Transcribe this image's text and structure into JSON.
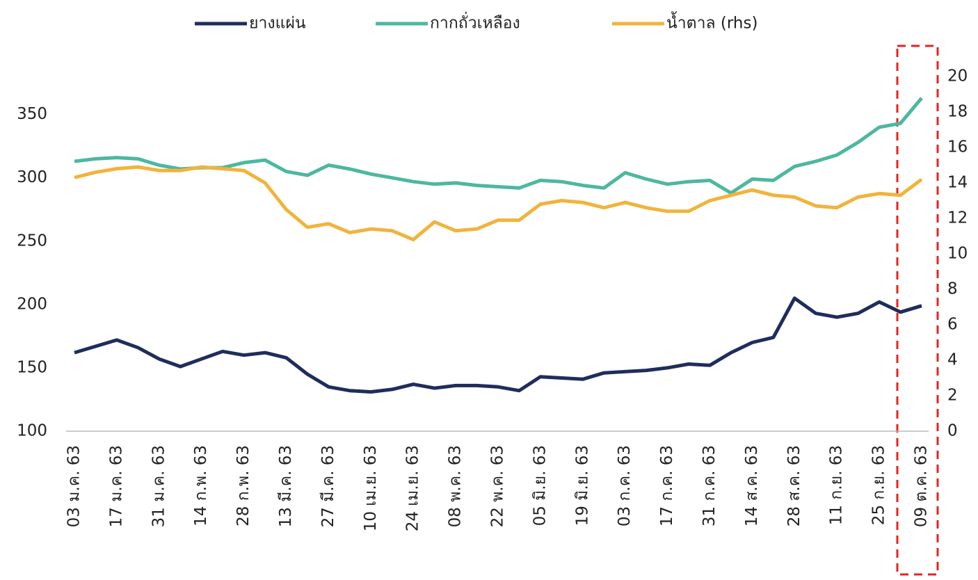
{
  "chart_data": {
    "type": "line",
    "categories": [
      "03 ม.ค. 63",
      null,
      "17 ม.ค. 63",
      null,
      "31 ม.ค. 63",
      null,
      "14 ก.พ. 63",
      null,
      "28 ก.พ. 63",
      null,
      "13 มี.ค. 63",
      null,
      "27 มี.ค. 63",
      null,
      "10 เม.ย. 63",
      null,
      "24 เม.ย. 63",
      null,
      "08 พ.ค. 63",
      null,
      "22 พ.ค. 63",
      null,
      "05 มิ.ย. 63",
      null,
      "19 มิ.ย. 63",
      null,
      "03 ก.ค. 63",
      null,
      "17 ก.ค. 63",
      null,
      "31 ก.ค. 63",
      null,
      "14 ส.ค. 63",
      null,
      "28 ส.ค. 63",
      null,
      "11 ก.ย. 63",
      null,
      "25 ก.ย. 63",
      null,
      "09 ต.ค. 63"
    ],
    "series": [
      {
        "name": "ยางแผ่น",
        "color": "#1f2d5c",
        "values": [
          162,
          167,
          172,
          166,
          157,
          151,
          157,
          163,
          160,
          162,
          158,
          145,
          135,
          132,
          131,
          133,
          137,
          134,
          136,
          136,
          135,
          132,
          143,
          142,
          141,
          146,
          147,
          148,
          150,
          153,
          152,
          162,
          170,
          174,
          205,
          193,
          190,
          193,
          202,
          194,
          199
        ]
      },
      {
        "name": "กากถั่วเหลือง",
        "color": "#4cb89f",
        "values": [
          313,
          315,
          316,
          315,
          310,
          307,
          308,
          308,
          312,
          314,
          305,
          302,
          310,
          307,
          303,
          300,
          297,
          295,
          296,
          294,
          293,
          292,
          298,
          297,
          294,
          292,
          304,
          299,
          295,
          297,
          298,
          288,
          299,
          298,
          309,
          313,
          318,
          328,
          340,
          343,
          363
        ]
      },
      {
        "name": "น้ำตาล (rhs)",
        "color": "#f0b43c",
        "axis": "y2",
        "values": [
          14.3,
          14.6,
          14.8,
          14.9,
          14.7,
          14.7,
          14.9,
          14.8,
          14.7,
          14.0,
          12.5,
          11.5,
          11.7,
          11.2,
          11.4,
          11.3,
          10.8,
          11.8,
          11.3,
          11.4,
          11.9,
          11.9,
          12.8,
          13.0,
          12.9,
          12.6,
          12.9,
          12.6,
          12.4,
          12.4,
          13.0,
          13.3,
          13.6,
          13.3,
          13.2,
          12.7,
          12.6,
          13.2,
          13.4,
          13.3,
          14.2
        ]
      }
    ],
    "ylim": [
      100,
      380
    ],
    "yticks": [
      100,
      150,
      200,
      250,
      300,
      350
    ],
    "y2lim": [
      0,
      20
    ],
    "y2ticks": [
      0,
      2,
      4,
      6,
      8,
      10,
      12,
      14,
      16,
      18,
      20
    ],
    "legend": "top"
  }
}
